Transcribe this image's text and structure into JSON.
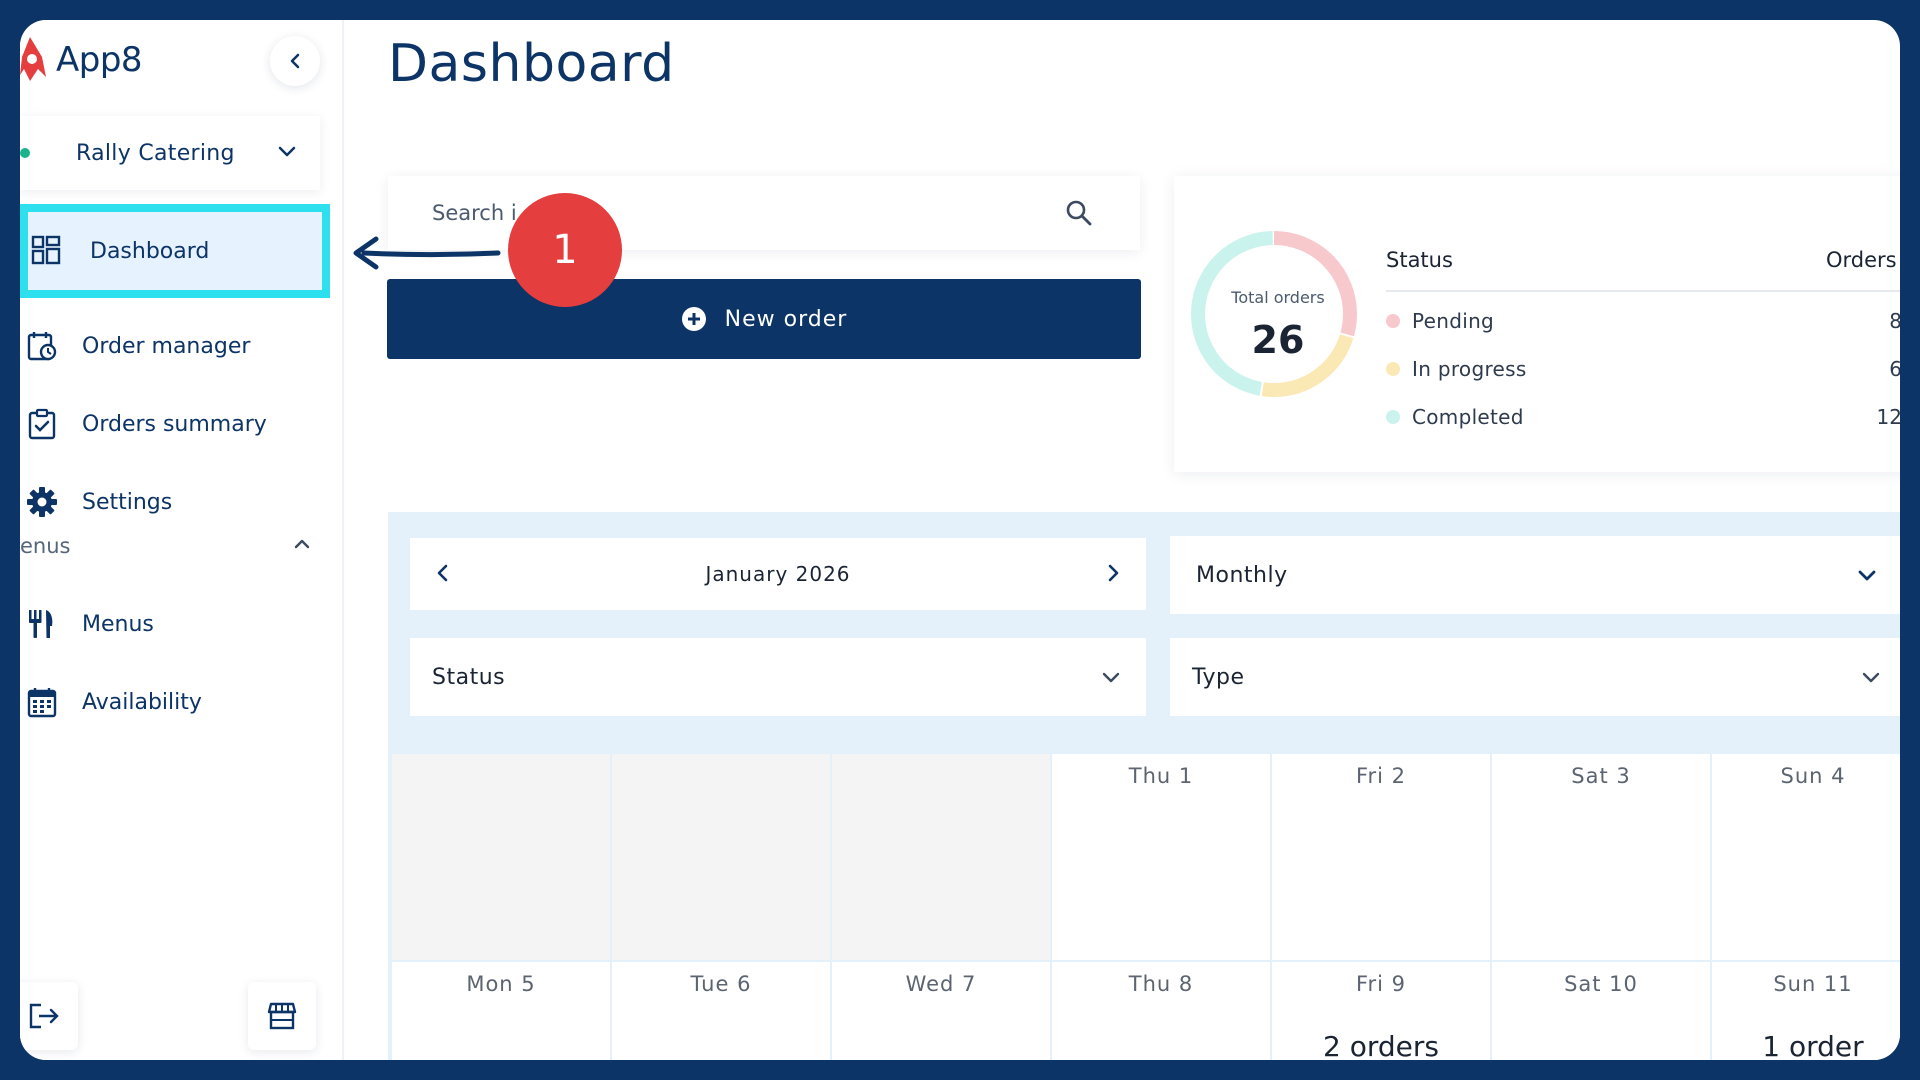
{
  "app": {
    "name": "App8"
  },
  "organization": {
    "name": "Rally Catering"
  },
  "sidebar": {
    "items": [
      {
        "label": "Dashboard",
        "icon": "dashboard-icon",
        "active": true
      },
      {
        "label": "Order manager",
        "icon": "order-manager-icon"
      },
      {
        "label": "Orders summary",
        "icon": "clipboard-check-icon"
      },
      {
        "label": "Settings",
        "icon": "gear-icon"
      }
    ],
    "section_label": "enus",
    "section_items": [
      {
        "label": "Menus",
        "icon": "fork-knife-icon"
      },
      {
        "label": "Availability",
        "icon": "calendar-icon"
      }
    ]
  },
  "header": {
    "title": "Dashboard"
  },
  "search": {
    "placeholder": "Search i"
  },
  "actions": {
    "new_order": "New order"
  },
  "callout": {
    "number": "1"
  },
  "status_summary": {
    "total_caption": "Total orders",
    "total": "26",
    "header_status": "Status",
    "header_orders": "Orders",
    "rows": [
      {
        "name": "Pending",
        "count": "8",
        "color": "#f8c9cc"
      },
      {
        "name": "In progress",
        "count": "6",
        "color": "#fbe9b5"
      },
      {
        "name": "Completed",
        "count": "12",
        "color": "#c9f3ec"
      }
    ]
  },
  "calendar": {
    "month": "January 2026",
    "view": "Monthly",
    "status_filter": "Status",
    "type_filter": "Type",
    "week1": [
      "",
      "",
      "",
      "Thu 1",
      "Fri 2",
      "Sat 3",
      "Sun 4"
    ],
    "week2": [
      "Mon 5",
      "Tue 6",
      "Wed 7",
      "Thu 8",
      "Fri 9",
      "Sat 10",
      "Sun 11"
    ],
    "week2_orders": [
      "",
      "",
      "",
      "",
      "2 orders",
      "",
      "1 order"
    ]
  },
  "colors": {
    "navy": "#0c3466",
    "active_highlight": "#2ee0ee",
    "callout_red": "#e53e3e"
  }
}
